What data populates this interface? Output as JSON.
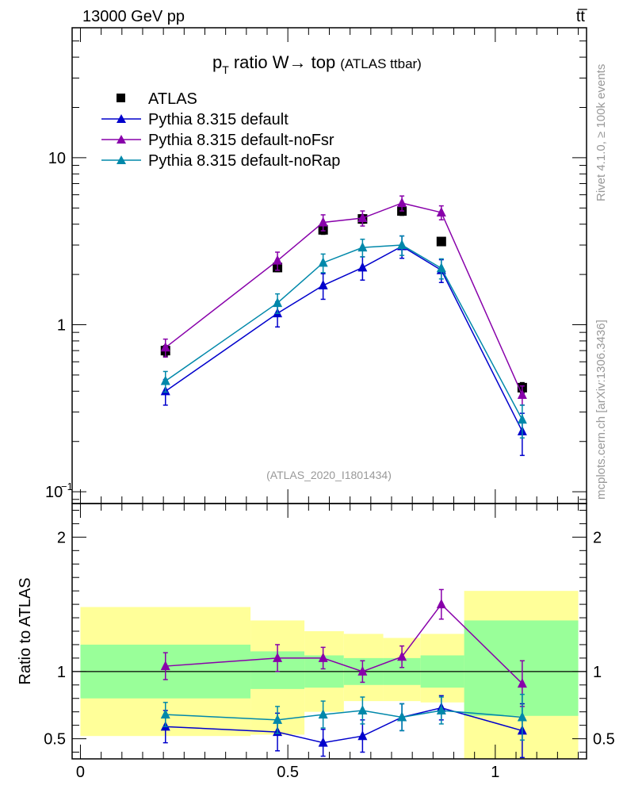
{
  "header": {
    "energy_label": "13000 GeV pp",
    "process_label": "tt̅"
  },
  "side": {
    "rivet_label": "Rivet 4.1.0, ≥ 100k events",
    "source_label": "mcplots.cern.ch [arXiv:1306.3436]"
  },
  "chart_data": [
    {
      "type": "line",
      "title": "p_T ratio W → top (ATLAS ttbar)",
      "title_main": "ratio W→ top",
      "title_sub": "(ATLAS ttbar)",
      "title_p": "p",
      "title_T": "T",
      "watermark": "(ATLAS_2020_I1801434)",
      "yscale": "log",
      "ylim": [
        0.085,
        60
      ],
      "xlim": [
        -0.02,
        1.22
      ],
      "y_ticks": [
        {
          "value": 10,
          "label": "10"
        },
        {
          "value": 1,
          "label": "1"
        },
        {
          "value": 0.1,
          "base": "10",
          "exp": "−1"
        }
      ],
      "legend": {
        "position": "top-left",
        "entries": [
          {
            "label": "ATLAS",
            "color": "#000000",
            "marker": "square"
          },
          {
            "label": "Pythia 8.315 default",
            "color": "#0000cc",
            "marker": "triangle"
          },
          {
            "label": "Pythia 8.315 default-noFsr",
            "color": "#8800aa",
            "marker": "triangle"
          },
          {
            "label": "Pythia 8.315 default-noRap",
            "color": "#0088aa",
            "marker": "triangle"
          }
        ]
      },
      "series": [
        {
          "name": "ATLAS",
          "color": "#000000",
          "marker": "square",
          "x": [
            0.205,
            0.475,
            0.585,
            0.68,
            0.775,
            0.87,
            1.065
          ],
          "y": [
            0.7,
            2.2,
            3.7,
            4.3,
            4.8,
            3.15,
            0.42
          ],
          "err": [
            0.05,
            0.12,
            0.22,
            0.25,
            0.28,
            0.15,
            0.03
          ]
        },
        {
          "name": "Pythia 8.315 default",
          "color": "#0000cc",
          "marker": "triangle",
          "x": [
            0.205,
            0.475,
            0.585,
            0.68,
            0.775,
            0.87,
            1.065
          ],
          "y": [
            0.4,
            1.17,
            1.72,
            2.2,
            2.95,
            2.12,
            0.23
          ],
          "err": [
            0.07,
            0.2,
            0.3,
            0.35,
            0.45,
            0.33,
            0.065
          ]
        },
        {
          "name": "Pythia 8.315 default-noFsr",
          "color": "#8800aa",
          "marker": "triangle",
          "x": [
            0.205,
            0.475,
            0.585,
            0.68,
            0.775,
            0.87,
            1.065
          ],
          "y": [
            0.73,
            2.42,
            4.1,
            4.35,
            5.35,
            4.7,
            0.38
          ],
          "err": [
            0.09,
            0.3,
            0.45,
            0.45,
            0.55,
            0.45,
            0.05
          ]
        },
        {
          "name": "Pythia 8.315 default-noRap",
          "color": "#0088aa",
          "marker": "triangle",
          "x": [
            0.205,
            0.475,
            0.585,
            0.68,
            0.775,
            0.87,
            1.065
          ],
          "y": [
            0.46,
            1.35,
            2.35,
            2.9,
            3.0,
            2.18,
            0.27
          ],
          "err": [
            0.065,
            0.18,
            0.3,
            0.35,
            0.4,
            0.3,
            0.06
          ]
        }
      ]
    },
    {
      "type": "line",
      "ylabel": "Ratio to ATLAS",
      "ylim": [
        0.35,
        2.25
      ],
      "xlim": [
        -0.02,
        1.22
      ],
      "y_ticks": [
        {
          "value": 0.5,
          "label": "0.5"
        },
        {
          "value": 1,
          "label": "1"
        },
        {
          "value": 2,
          "label": "2"
        }
      ],
      "x_ticks": [
        {
          "value": 0,
          "label": "0"
        },
        {
          "value": 0.5,
          "label": "0.5"
        },
        {
          "value": 1,
          "label": "1"
        }
      ],
      "reference_line": 1,
      "bands": {
        "bins": [
          [
            0.0,
            0.41
          ],
          [
            0.41,
            0.54
          ],
          [
            0.54,
            0.635
          ],
          [
            0.635,
            0.73
          ],
          [
            0.73,
            0.82
          ],
          [
            0.82,
            0.925
          ],
          [
            0.925,
            1.2
          ]
        ],
        "yellow_low": [
          0.52,
          0.53,
          0.7,
          0.78,
          0.78,
          0.77,
          0.3
        ],
        "yellow_high": [
          1.48,
          1.38,
          1.3,
          1.28,
          1.25,
          1.28,
          1.6
        ],
        "green_low": [
          0.8,
          0.87,
          0.88,
          0.9,
          0.9,
          0.88,
          0.67
        ],
        "green_high": [
          1.2,
          1.15,
          1.12,
          1.1,
          1.1,
          1.12,
          1.38
        ]
      },
      "series": [
        {
          "name": "Pythia 8.315 default",
          "color": "#0000cc",
          "x": [
            0.205,
            0.475,
            0.585,
            0.68,
            0.775,
            0.87,
            1.065
          ],
          "y": [
            0.59,
            0.55,
            0.47,
            0.52,
            0.66,
            0.73,
            0.56
          ],
          "err": [
            0.12,
            0.14,
            0.1,
            0.12,
            0.1,
            0.09,
            0.2
          ]
        },
        {
          "name": "Pythia 8.315 default-noFsr",
          "color": "#8800aa",
          "x": [
            0.205,
            0.475,
            0.585,
            0.68,
            0.775,
            0.87,
            1.065
          ],
          "y": [
            1.04,
            1.1,
            1.1,
            1.0,
            1.11,
            1.5,
            0.91
          ],
          "err": [
            0.1,
            0.1,
            0.08,
            0.08,
            0.08,
            0.11,
            0.17
          ]
        },
        {
          "name": "Pythia 8.315 default-noRap",
          "color": "#0088aa",
          "x": [
            0.205,
            0.475,
            0.585,
            0.68,
            0.775,
            0.87,
            1.065
          ],
          "y": [
            0.68,
            0.64,
            0.68,
            0.71,
            0.66,
            0.71,
            0.66
          ],
          "err": [
            0.09,
            0.1,
            0.1,
            0.1,
            0.1,
            0.1,
            0.17
          ]
        }
      ]
    }
  ]
}
